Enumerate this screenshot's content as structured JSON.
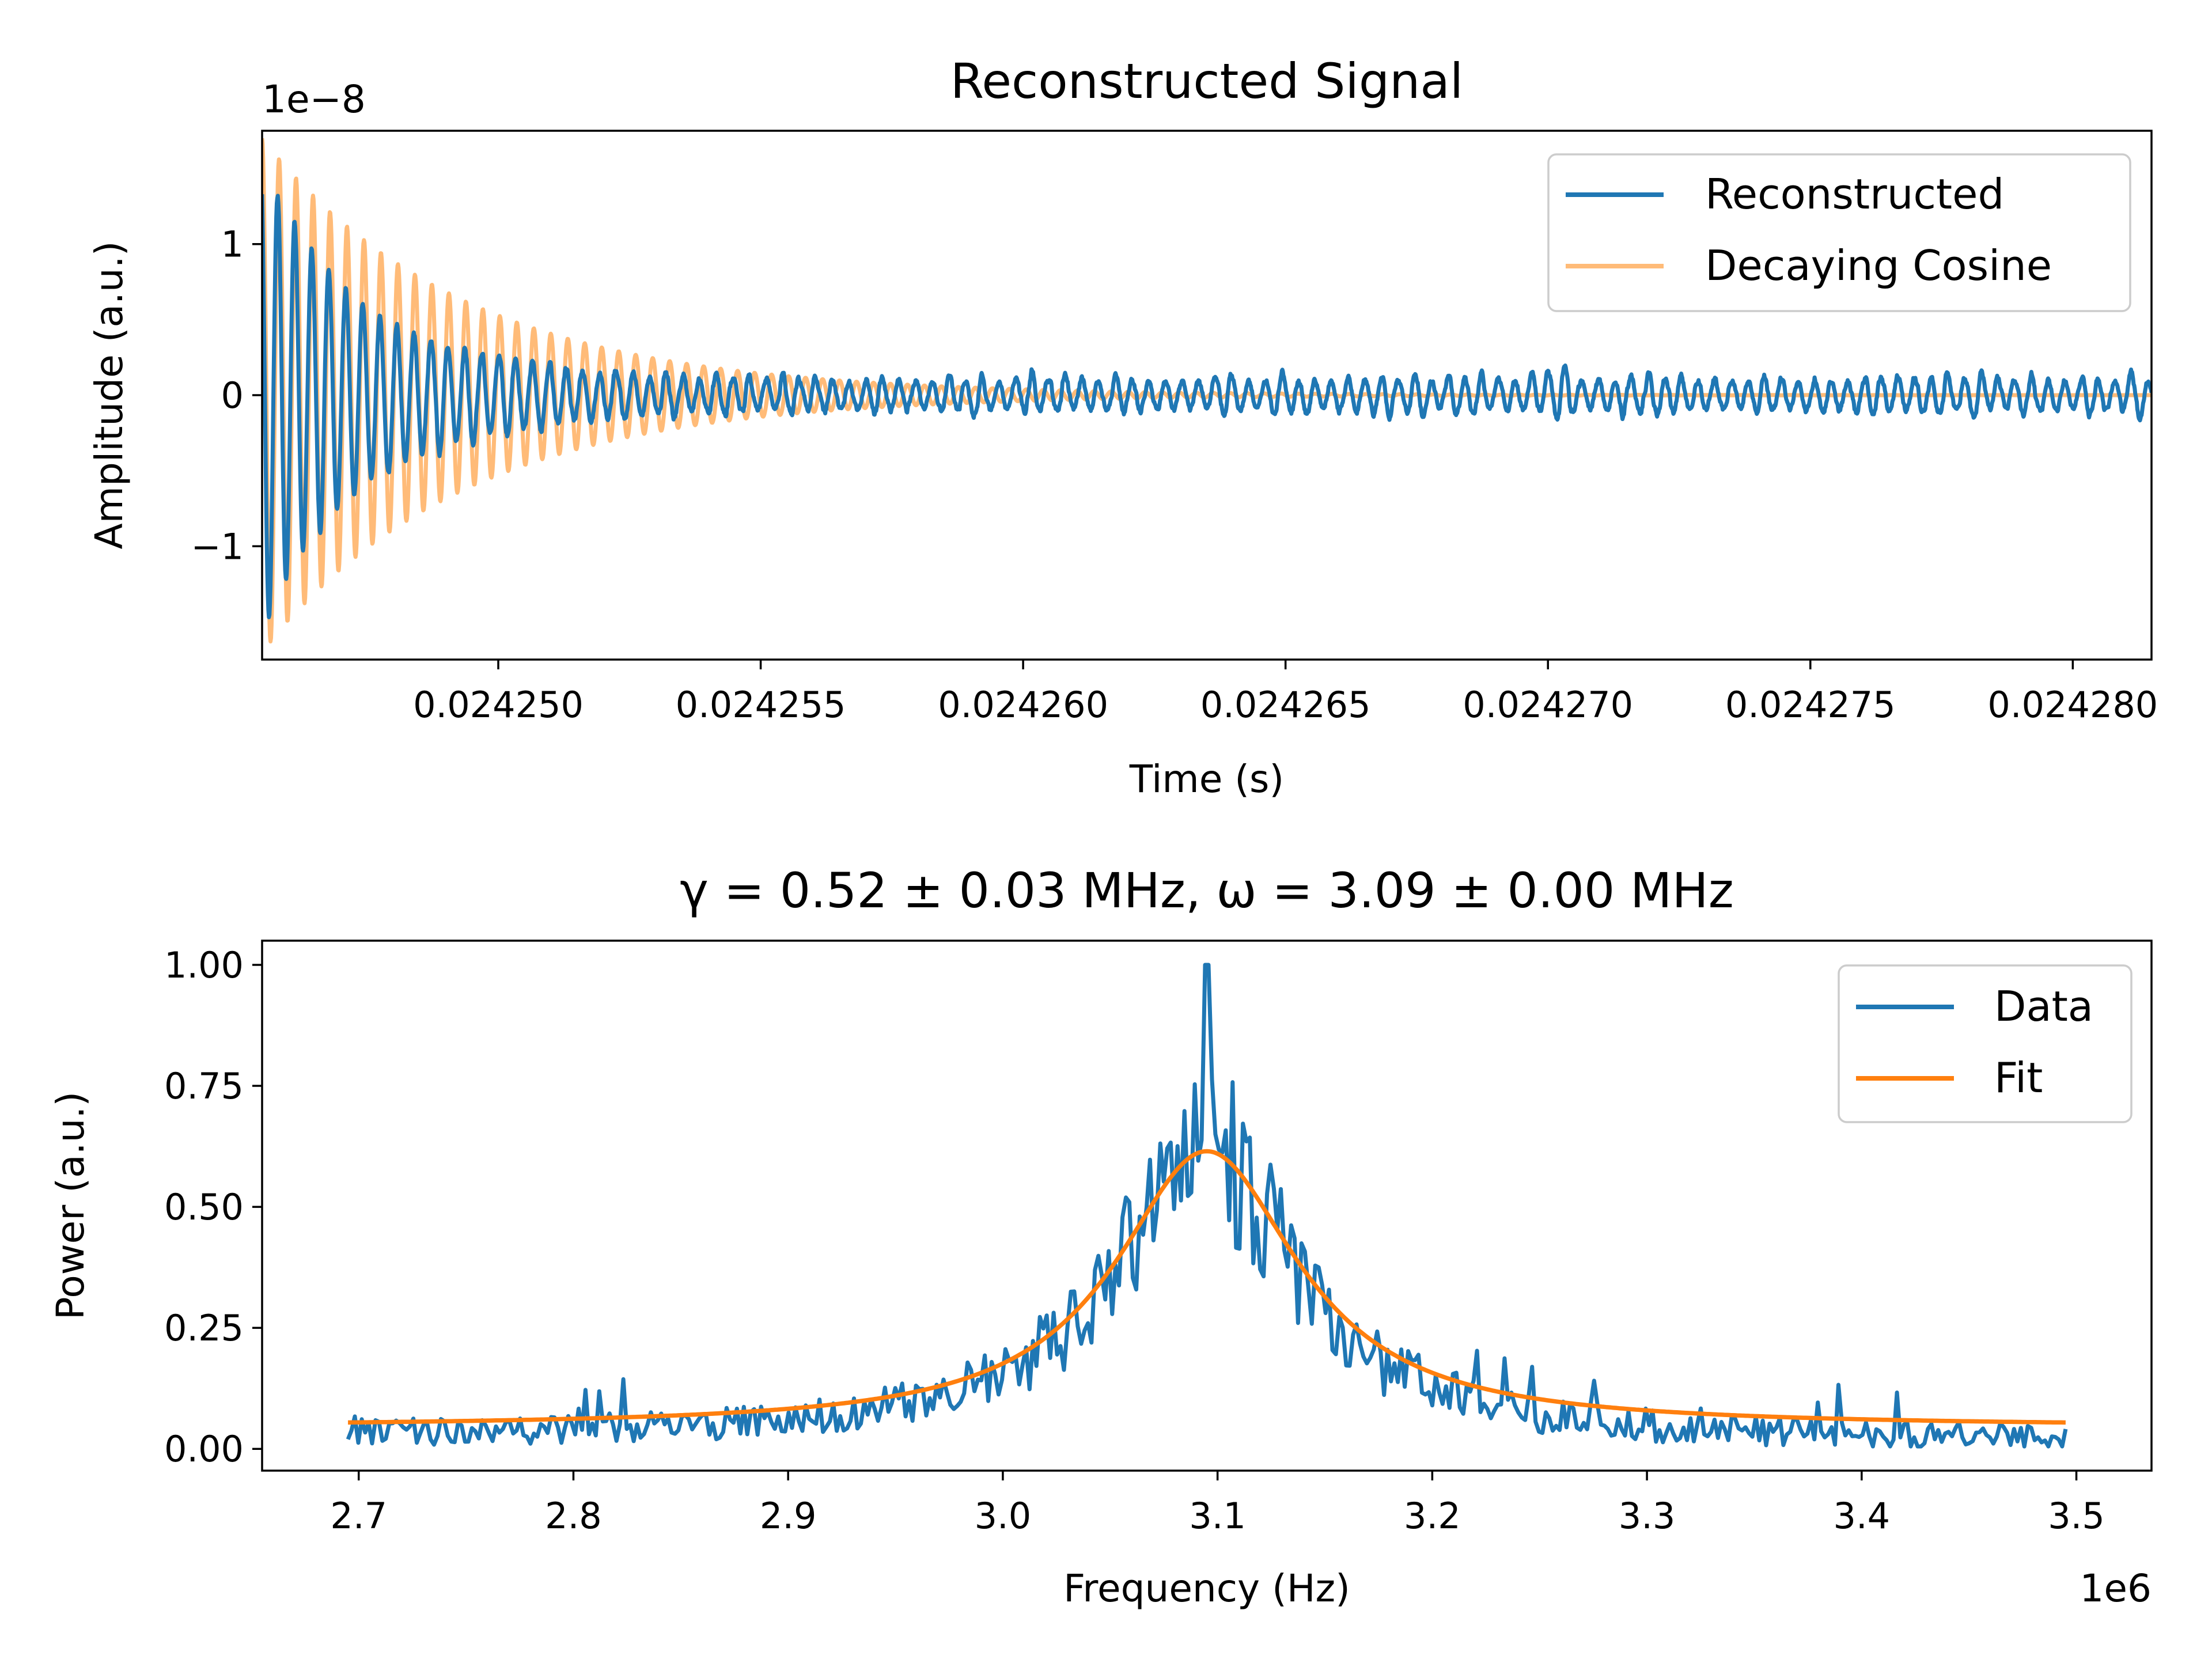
{
  "chart_data": [
    {
      "type": "line",
      "title": "Reconstructed Signal",
      "xlabel": "Time (s)",
      "ylabel": "Amplitude (a.u.)",
      "y_multiplier": "1e−8",
      "xlim": [
        0.0242455,
        0.0242815
      ],
      "ylim": [
        -1.75,
        1.75
      ],
      "xticks": [
        0.02425,
        0.024255,
        0.02426,
        0.024265,
        0.02427,
        0.024275,
        0.02428
      ],
      "xtick_labels": [
        "0.024250",
        "0.024255",
        "0.024260",
        "0.024265",
        "0.024270",
        "0.024275",
        "0.024280"
      ],
      "yticks": [
        -1,
        0,
        1
      ],
      "ytick_labels": [
        "−1",
        "0",
        "1"
      ],
      "grid": false,
      "legend_position": "top-right",
      "series": [
        {
          "name": "Reconstructed",
          "color": "#1f77b4",
          "model": "decaying-oscillation-with-noise",
          "t0": 0.0242455,
          "t1": 0.0242815,
          "frequency_hz": 3090000,
          "initial_amplitude": 1.6,
          "decay_rate_per_s": 520000,
          "noise_floor": 0.08
        },
        {
          "name": "Decaying Cosine",
          "color": "#ffbb78",
          "model": "decaying-cosine",
          "t0": 0.0242455,
          "t1": 0.0242815,
          "frequency_hz": 3090000,
          "initial_amplitude": 1.7,
          "decay_rate_per_s": 260000
        }
      ]
    },
    {
      "type": "line",
      "title": "γ = 0.52 ± 0.03 MHz, ω = 3.09 ± 0.00 MHz",
      "xlabel": "Frequency (Hz)",
      "ylabel": "Power (a.u.)",
      "x_multiplier": "1e6",
      "xlim": [
        2.655,
        3.535
      ],
      "ylim": [
        -0.045,
        1.05
      ],
      "xticks": [
        2.7,
        2.8,
        2.9,
        3.0,
        3.1,
        3.2,
        3.3,
        3.4,
        3.5
      ],
      "xtick_labels": [
        "2.7",
        "2.8",
        "2.9",
        "3.0",
        "3.1",
        "3.2",
        "3.3",
        "3.4",
        "3.5"
      ],
      "yticks": [
        0,
        0.25,
        0.5,
        0.75,
        1.0
      ],
      "ytick_labels": [
        "0.00",
        "0.25",
        "0.50",
        "0.75",
        "1.00"
      ],
      "grid": false,
      "legend_position": "top-right",
      "series": [
        {
          "name": "Data",
          "color": "#1f77b4",
          "model": "noisy-lorentzian-spectrum",
          "x_start": 2.695,
          "x_end": 3.495,
          "n_points": 500,
          "peak_x": 3.095,
          "peak_y": 1.0
        },
        {
          "name": "Fit",
          "color": "#ff7f0e",
          "model": "lorentzian",
          "x_start": 2.695,
          "x_end": 3.495,
          "center": 3.095,
          "fwhm": 0.104,
          "amplitude": 0.57,
          "offset": 0.045
        }
      ]
    }
  ]
}
